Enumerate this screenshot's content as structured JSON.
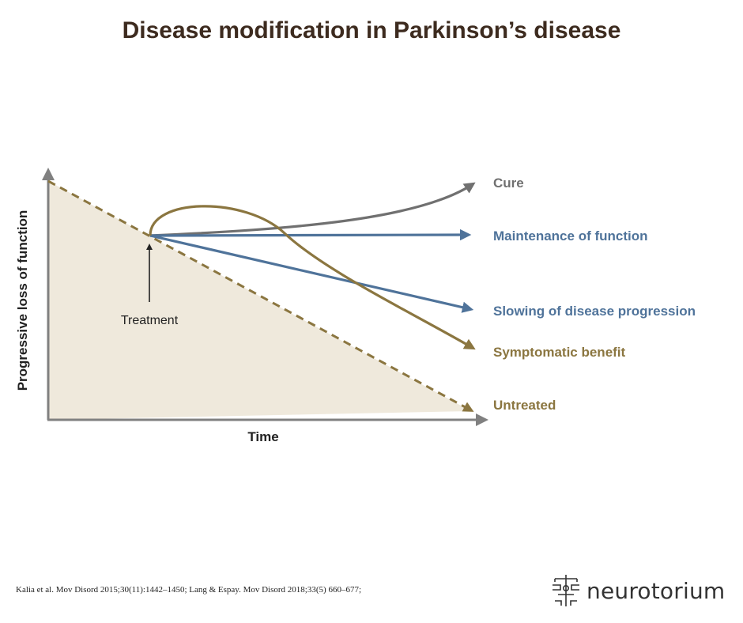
{
  "title": "Disease modification in Parkinson’s disease",
  "axes": {
    "x_label": "Time",
    "y_label": "Progressive loss of function"
  },
  "annotation": {
    "treatment": "Treatment"
  },
  "outcomes": [
    {
      "id": "cure",
      "label": "Cure",
      "color": "#707070"
    },
    {
      "id": "maintenance",
      "label": "Maintenance of function",
      "color": "#4f739a"
    },
    {
      "id": "slowing",
      "label": "Slowing of disease progression",
      "color": "#4f739a"
    },
    {
      "id": "symptomatic",
      "label": "Symptomatic benefit",
      "color": "#8b7640"
    },
    {
      "id": "untreated",
      "label": "Untreated",
      "color": "#8b7640"
    }
  ],
  "colors": {
    "axis": "#808080",
    "shaded_area": "#efe9dc",
    "blue": "#4f739a",
    "gold": "#8b7640",
    "gray": "#707070",
    "title": "#3d2b1f"
  },
  "footnote": "Kalia et al. Mov Disord 2015;30(11):1442–1450; Lang & Espay. Mov Disord 2018;33(5) 660–677;",
  "logo": {
    "text": "neurotorium",
    "icon": "neurotorium-logo-icon"
  }
}
